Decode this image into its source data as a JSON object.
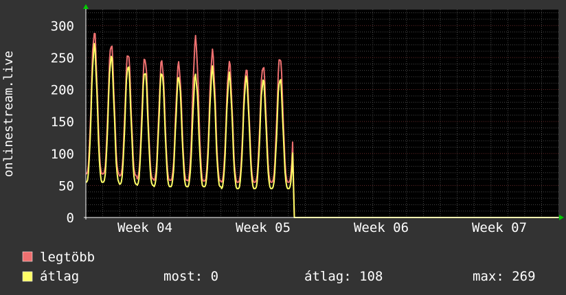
{
  "colors": {
    "background": "#333333",
    "plot_background": "#000000",
    "grid_major": "#6b2b2b",
    "grid_minor": "#4a4a4a",
    "axis": "#ffffff",
    "arrow": "#00cc00",
    "max_series": "#ee7070",
    "avg_series": "#ffff66"
  },
  "chart_data": {
    "type": "area",
    "ylabel": "onlinestream.live",
    "ylim": [
      0,
      325
    ],
    "yticks": [
      0,
      50,
      100,
      150,
      200,
      250,
      300
    ],
    "x_unit": "days",
    "xlim": [
      0,
      28
    ],
    "week_ticks": [
      {
        "label": "Week 04",
        "x": 3.5
      },
      {
        "label": "Week 05",
        "x": 10.5
      },
      {
        "label": "Week 06",
        "x": 17.5
      },
      {
        "label": "Week 07",
        "x": 24.5
      }
    ],
    "grid": true,
    "series": [
      {
        "name": "legtöbb",
        "peaks": [
          290,
          272,
          258,
          250,
          245,
          240,
          278,
          258,
          242,
          232,
          238,
          252
        ],
        "troughs": [
          68,
          68,
          65,
          60,
          58,
          58,
          57,
          57,
          55,
          55,
          55,
          55
        ]
      },
      {
        "name": "átlag",
        "peaks": [
          268,
          252,
          238,
          230,
          228,
          220,
          222,
          232,
          222,
          218,
          215,
          218
        ],
        "troughs": [
          55,
          55,
          52,
          50,
          48,
          48,
          48,
          48,
          45,
          45,
          45,
          45
        ]
      }
    ],
    "peak_days": [
      0.5,
      1.5,
      2.5,
      3.5,
      4.5,
      5.5,
      6.5,
      7.5,
      8.5,
      9.5,
      10.5,
      11.5
    ],
    "drop_day": 12.3
  },
  "legend": {
    "items": [
      {
        "label": "legtöbb"
      },
      {
        "label": "átlag"
      }
    ],
    "stats": {
      "current": "most: 0",
      "average": "átlag: 108",
      "max": "max: 269"
    }
  }
}
